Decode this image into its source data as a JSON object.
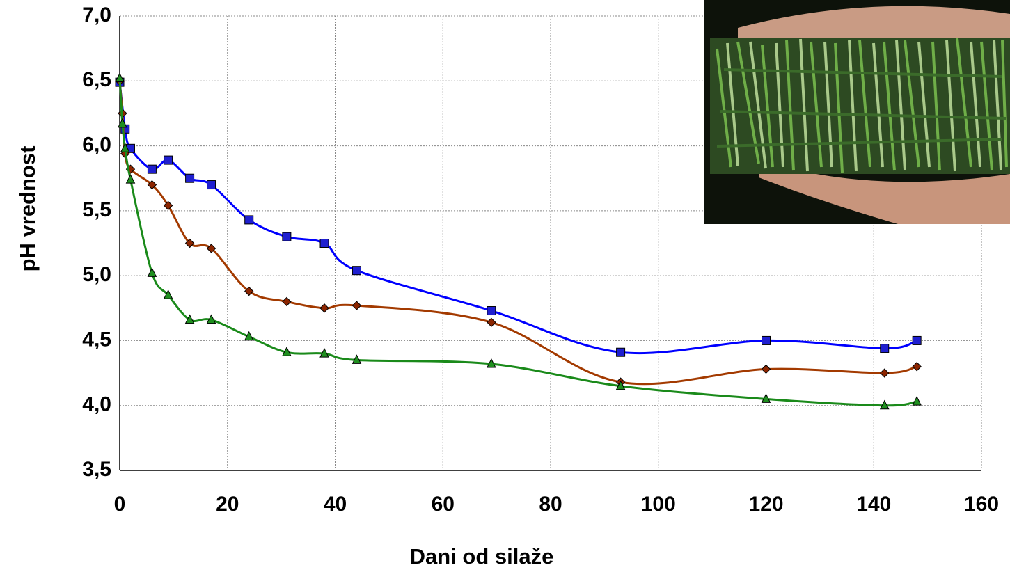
{
  "chart_data": {
    "type": "line",
    "x_label": "Dani od silaže",
    "y_label": "pH vrednost",
    "xlim": [
      0,
      160
    ],
    "xticks": [
      0,
      20,
      40,
      60,
      80,
      100,
      120,
      140,
      160
    ],
    "ylim": [
      3.5,
      7.0
    ],
    "yticks": [
      {
        "value": 3.5,
        "label": "3,5"
      },
      {
        "value": 4.0,
        "label": "4,0"
      },
      {
        "value": 4.5,
        "label": "4,5"
      },
      {
        "value": 5.0,
        "label": "5,0"
      },
      {
        "value": 5.5,
        "label": "5,5"
      },
      {
        "value": 6.0,
        "label": "6,0"
      },
      {
        "value": 6.5,
        "label": "6,5"
      },
      {
        "value": 7.0,
        "label": "7,0"
      }
    ],
    "grid": true,
    "smooth": true,
    "series": [
      {
        "color": "#0000ff",
        "marker": "square",
        "marker_color": "#1f1fd0",
        "x": [
          0,
          1,
          2,
          6,
          9,
          13,
          17,
          24,
          31,
          38,
          44,
          69,
          93,
          120,
          142,
          148
        ],
        "values": [
          6.49,
          6.13,
          5.98,
          5.82,
          5.89,
          5.75,
          5.7,
          5.43,
          5.3,
          5.25,
          5.04,
          4.73,
          4.41,
          4.5,
          4.44,
          4.5
        ]
      },
      {
        "color": "#a33a00",
        "marker": "diamond",
        "marker_color": "#8b2500",
        "x": [
          0,
          0.5,
          1,
          2,
          6,
          9,
          13,
          17,
          24,
          31,
          38,
          44,
          69,
          93,
          120,
          142,
          148
        ],
        "values": [
          6.5,
          6.25,
          5.94,
          5.82,
          5.7,
          5.54,
          5.25,
          5.21,
          4.88,
          4.8,
          4.75,
          4.77,
          4.64,
          4.18,
          4.28,
          4.25,
          4.3
        ]
      },
      {
        "color": "#1a8a1a",
        "marker": "triangle",
        "marker_color": "#1f8f1f",
        "x": [
          0,
          0.5,
          1,
          2,
          6,
          9,
          13,
          17,
          24,
          31,
          38,
          44,
          69,
          93,
          120,
          142,
          148
        ],
        "values": [
          6.52,
          6.17,
          5.98,
          5.74,
          5.02,
          4.85,
          4.66,
          4.66,
          4.53,
          4.41,
          4.4,
          4.35,
          4.32,
          4.15,
          4.05,
          4.0,
          4.03
        ]
      }
    ]
  }
}
